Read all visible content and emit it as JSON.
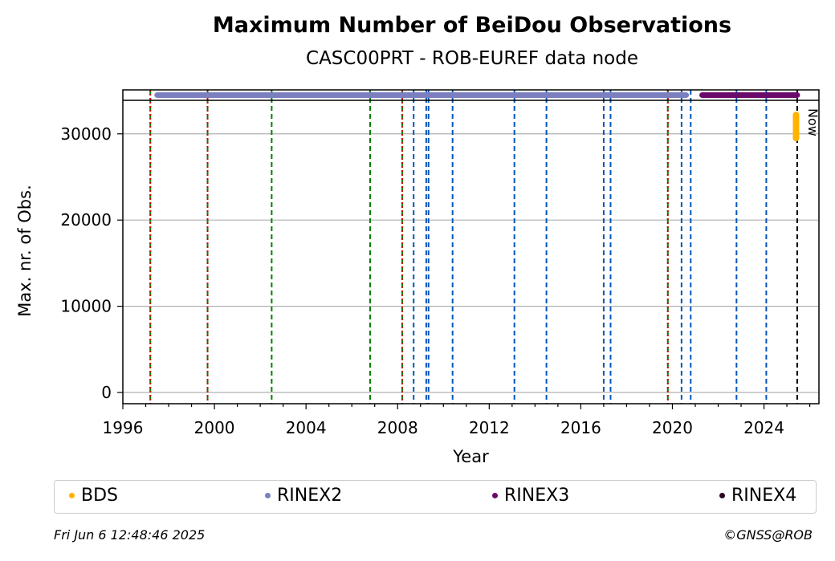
{
  "chart_data": {
    "type": "scatter",
    "title": "Maximum Number of BeiDou Observations",
    "subtitle": "CASC00PRT - ROB-EUREF data node",
    "xlabel": "Year",
    "ylabel": "Max. nr. of Obs.",
    "xlim": [
      1996,
      2026.4
    ],
    "ylim": [
      -1300,
      35100
    ],
    "x_ticks": [
      "1996",
      "2000",
      "2004",
      "2008",
      "2012",
      "2016",
      "2020",
      "2024"
    ],
    "y_ticks": [
      "0",
      "10000",
      "20000",
      "30000"
    ],
    "grid": "horizontal",
    "legend_position": "bottom",
    "series": [
      {
        "name": "BDS",
        "color": "#FFB300",
        "segments": [
          {
            "x_start": 2025.35,
            "x_end": 2025.45,
            "y_min": 29500,
            "y_max": 32200
          }
        ]
      },
      {
        "name": "RINEX2",
        "color": "#7B7FBF",
        "segments": [
          {
            "x_start": 1997.5,
            "x_end": 2020.6,
            "y": 34500
          }
        ]
      },
      {
        "name": "RINEX3",
        "color": "#6A0A6A",
        "segments": [
          {
            "x_start": 2021.3,
            "x_end": 2025.45,
            "y": 34500
          }
        ]
      },
      {
        "name": "RINEX4",
        "color": "#2A0820",
        "segments": []
      }
    ],
    "event_lines": {
      "green": [
        1997.2,
        1999.7,
        2002.5,
        2006.8,
        2008.2,
        2019.8
      ],
      "red_dotted": [
        1997.2,
        1999.7,
        2008.2,
        2019.8
      ],
      "blue": [
        2008.7,
        2009.25,
        2009.35,
        2010.4,
        2013.1,
        2014.5,
        2017.0,
        2017.3,
        2020.4,
        2020.8,
        2022.8,
        2024.1
      ],
      "now": 2025.45
    },
    "annotations": [
      "Now"
    ]
  },
  "footer": {
    "timestamp": "Fri Jun  6 12:48:46 2025",
    "credit": "©GNSS@ROB"
  }
}
